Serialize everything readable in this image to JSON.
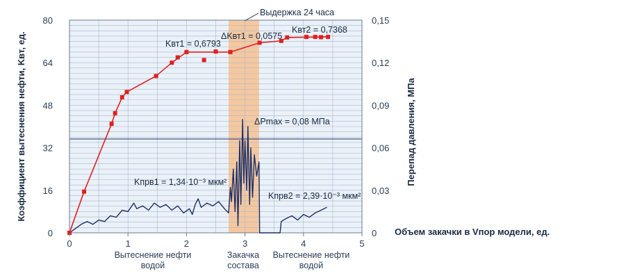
{
  "chart_data": {
    "type": "line",
    "left_axis_title": "Коэффициент вытеснения нефти, Kвт, ед.",
    "right_axis_title": "Перепад давления, МПа",
    "x_axis_title": "Объем закачки в Vпор модели, ед.",
    "x_ticks": [
      "0",
      "1",
      "2",
      "3",
      "4",
      "5"
    ],
    "y_left_ticks": [
      "0",
      "16",
      "32",
      "48",
      "64",
      "80"
    ],
    "y_right_ticks": [
      "0",
      "0,03",
      "0,06",
      "0,09",
      "0,12",
      "0,15"
    ],
    "xlim": [
      0,
      5
    ],
    "ylim_left": [
      0,
      80
    ],
    "ylim_right": [
      0,
      0.15
    ],
    "grid": true,
    "phases": [
      {
        "label_line1": "Вытеснение нефти",
        "label_line2": "водой",
        "x_center": 1.0
      },
      {
        "label_line1": "Закачка",
        "label_line2": "состава",
        "x_center": 2.98
      },
      {
        "label_line1": "Вытеснение нефти",
        "label_line2": "водой",
        "x_center": 4.2
      }
    ],
    "highlight_band": {
      "x_from": 2.72,
      "x_to": 3.24,
      "color": "#f5c8a0",
      "label": "Выдержка 24 часа"
    },
    "annotations": {
      "kvt1": "Kвт1 = 0,6793",
      "dkvt": "ΔKвт1 = 0,0575",
      "kvt2": "Kвт2 = 0,7368",
      "dpmax": "ΔPmax = 0,08 МПа",
      "kpr1": "Kпрв1 = 1,34·10⁻³ мкм²",
      "kpr2": "Kпрв2 = 2,39·10⁻³ мкм²"
    },
    "series": [
      {
        "axis": "left",
        "color": "#e02020",
        "points": [
          [
            0,
            0
          ],
          [
            0.25,
            15.5
          ],
          [
            0.72,
            41
          ],
          [
            0.78,
            45
          ],
          [
            0.9,
            51
          ],
          [
            0.98,
            53
          ],
          [
            1.48,
            59
          ],
          [
            1.75,
            64
          ],
          [
            1.85,
            66
          ],
          [
            2.0,
            68
          ],
          [
            2.3,
            65
          ],
          [
            2.5,
            68.2
          ],
          [
            2.75,
            68
          ],
          [
            3.25,
            71.5
          ],
          [
            3.62,
            72.2
          ],
          [
            3.72,
            73.5
          ],
          [
            4.05,
            73.7
          ],
          [
            4.2,
            73.7
          ],
          [
            4.3,
            73.6
          ],
          [
            4.42,
            73.7
          ]
        ],
        "line": [
          [
            0,
            0
          ],
          [
            0.25,
            15.5
          ],
          [
            0.72,
            41
          ],
          [
            0.78,
            45
          ],
          [
            0.9,
            51
          ],
          [
            0.98,
            53
          ],
          [
            1.48,
            59
          ],
          [
            1.75,
            64
          ],
          [
            2.0,
            68
          ],
          [
            2.75,
            68
          ],
          [
            3.25,
            71.5
          ],
          [
            3.62,
            72.2
          ],
          [
            3.72,
            73.5
          ],
          [
            4.42,
            73.7
          ]
        ]
      },
      {
        "axis": "right",
        "color": "#1c2f66",
        "points": [
          [
            0,
            0
          ],
          [
            0.1,
            0.003
          ],
          [
            0.2,
            0.006
          ],
          [
            0.3,
            0.008
          ],
          [
            0.4,
            0.006
          ],
          [
            0.5,
            0.009
          ],
          [
            0.6,
            0.008
          ],
          [
            0.7,
            0.012
          ],
          [
            0.8,
            0.011
          ],
          [
            0.9,
            0.016
          ],
          [
            1.0,
            0.015
          ],
          [
            1.05,
            0.018
          ],
          [
            1.1,
            0.021
          ],
          [
            1.15,
            0.017
          ],
          [
            1.25,
            0.019
          ],
          [
            1.35,
            0.016
          ],
          [
            1.45,
            0.021
          ],
          [
            1.55,
            0.018
          ],
          [
            1.65,
            0.02
          ],
          [
            1.75,
            0.016
          ],
          [
            1.85,
            0.019
          ],
          [
            1.95,
            0.014
          ],
          [
            2.05,
            0.017
          ],
          [
            2.1,
            0.013
          ],
          [
            2.15,
            0.02
          ],
          [
            2.2,
            0.024
          ],
          [
            2.25,
            0.018
          ],
          [
            2.35,
            0.021
          ],
          [
            2.45,
            0.019
          ],
          [
            2.55,
            0.022
          ],
          [
            2.65,
            0.017
          ],
          [
            2.72,
            0.014
          ],
          [
            2.75,
            0.032
          ],
          [
            2.77,
            0.022
          ],
          [
            2.8,
            0.045
          ],
          [
            2.83,
            0.015
          ],
          [
            2.86,
            0.05
          ],
          [
            2.88,
            0.005
          ],
          [
            2.91,
            0.065
          ],
          [
            2.93,
            0.02
          ],
          [
            2.96,
            0.08
          ],
          [
            2.98,
            0.035
          ],
          [
            3.0,
            0.065
          ],
          [
            3.03,
            0.03
          ],
          [
            3.05,
            0.075
          ],
          [
            3.08,
            0.02
          ],
          [
            3.1,
            0.06
          ],
          [
            3.13,
            0.025
          ],
          [
            3.16,
            0.055
          ],
          [
            3.2,
            0.04
          ],
          [
            3.24,
            0.05
          ],
          [
            3.25,
            0.0
          ],
          [
            3.6,
            0.0
          ],
          [
            3.62,
            0.008
          ],
          [
            3.7,
            0.01
          ],
          [
            3.8,
            0.012
          ],
          [
            3.9,
            0.009
          ],
          [
            4.0,
            0.013
          ],
          [
            4.1,
            0.011
          ],
          [
            4.2,
            0.014
          ],
          [
            4.3,
            0.016
          ],
          [
            4.4,
            0.018
          ]
        ]
      }
    ]
  }
}
